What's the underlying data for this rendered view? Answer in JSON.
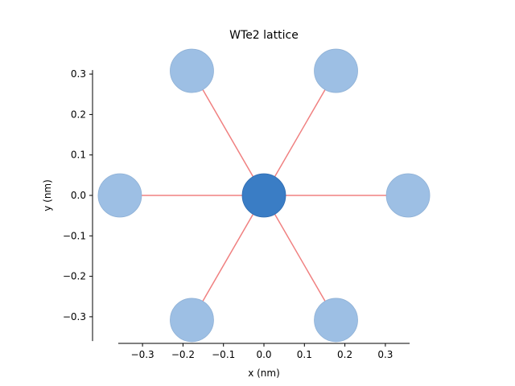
{
  "chart_data": {
    "type": "scatter",
    "title": "WTe2 lattice",
    "xlabel": "x (nm)",
    "ylabel": "y (nm)",
    "xlim": [
      -0.36,
      0.36
    ],
    "ylim": [
      -0.36,
      0.31
    ],
    "xticks": [
      -0.3,
      -0.2,
      -0.1,
      0.0,
      0.1,
      0.2,
      0.3
    ],
    "xtick_labels": [
      "−0.3",
      "−0.2",
      "−0.1",
      "0.0",
      "0.1",
      "0.2",
      "0.3"
    ],
    "yticks": [
      -0.3,
      -0.2,
      -0.1,
      0.0,
      0.1,
      0.2,
      0.3
    ],
    "ytick_labels": [
      "−0.3",
      "−0.2",
      "−0.1",
      "0.0",
      "0.1",
      "0.2",
      "0.3"
    ],
    "grid": false,
    "center_atom": {
      "x": 0.0,
      "y": 0.0,
      "color": "#3a7dc5"
    },
    "neighbors": {
      "color": "#9dbfe4",
      "points": [
        {
          "x": 0.178,
          "y": 0.308
        },
        {
          "x": 0.356,
          "y": 0.0
        },
        {
          "x": 0.178,
          "y": -0.308
        },
        {
          "x": -0.178,
          "y": -0.308
        },
        {
          "x": -0.356,
          "y": 0.0
        },
        {
          "x": -0.178,
          "y": 0.308
        }
      ]
    },
    "bond_color": "#f08080"
  }
}
